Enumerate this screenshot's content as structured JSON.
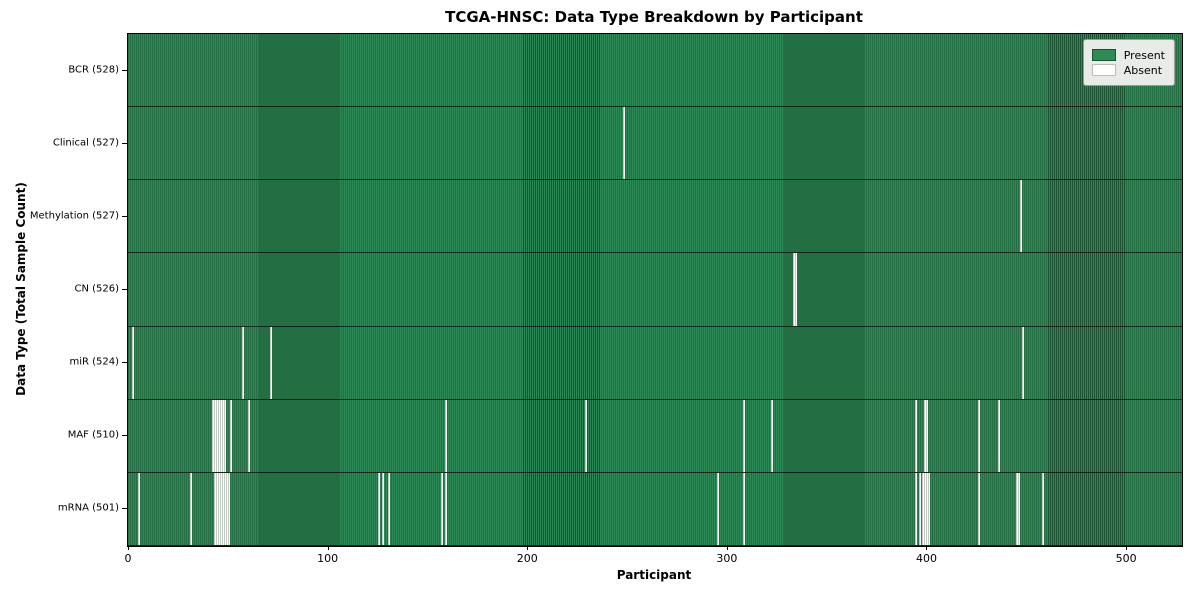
{
  "figure": {
    "title": "TCGA-HNSC: Data Type Breakdown by Participant"
  },
  "axes": {
    "xlabel": "Participant",
    "ylabel": "Data Type (Total Sample Count)"
  },
  "legend": {
    "present_label": "Present",
    "absent_label": "Absent"
  },
  "colors": {
    "present": "#2e8b57",
    "present_edge": "#1a5232",
    "absent": "#ffffff",
    "absent_edge": "#a9b1a9",
    "legend_bg": "#e7ece7"
  },
  "chart_data": {
    "type": "heatmap",
    "title": "TCGA-HNSC: Data Type Breakdown by Participant",
    "xlabel": "Participant",
    "ylabel": "Data Type (Total Sample Count)",
    "legend": [
      "Present",
      "Absent"
    ],
    "legend_position": "upper right",
    "grid": false,
    "x_range": [
      0,
      528
    ],
    "x_ticks": [
      0,
      100,
      200,
      300,
      400,
      500
    ],
    "n_participants": 528,
    "value_encoding": {
      "present": "green",
      "absent": "white"
    },
    "rows": [
      {
        "label": "BCR (528)",
        "data_type": "BCR",
        "present_count": 528,
        "absent_count": 0,
        "absent_participants": []
      },
      {
        "label": "Clinical (527)",
        "data_type": "Clinical",
        "present_count": 527,
        "absent_count": 1,
        "absent_participants": [
          248
        ]
      },
      {
        "label": "Methylation (527)",
        "data_type": "Methylation",
        "present_count": 527,
        "absent_count": 1,
        "absent_participants": [
          447
        ]
      },
      {
        "label": "CN (526)",
        "data_type": "CN",
        "present_count": 526,
        "absent_count": 2,
        "absent_participants": [
          333,
          334
        ]
      },
      {
        "label": "miR (524)",
        "data_type": "miR",
        "present_count": 524,
        "absent_count": 4,
        "absent_participants": [
          2,
          57,
          71,
          448
        ]
      },
      {
        "label": "MAF (510)",
        "data_type": "MAF",
        "present_count": 510,
        "absent_count": 18,
        "absent_participants": [
          42,
          43,
          44,
          45,
          46,
          47,
          48,
          51,
          60,
          159,
          229,
          308,
          322,
          394,
          399,
          400,
          426,
          436
        ]
      },
      {
        "label": "mRNA (501)",
        "data_type": "mRNA",
        "present_count": 501,
        "absent_count": 27,
        "absent_participants": [
          5,
          31,
          43,
          44,
          45,
          46,
          47,
          48,
          49,
          50,
          125,
          127,
          130,
          157,
          159,
          295,
          308,
          394,
          396,
          398,
          399,
          400,
          401,
          426,
          445,
          446,
          458
        ]
      }
    ]
  }
}
